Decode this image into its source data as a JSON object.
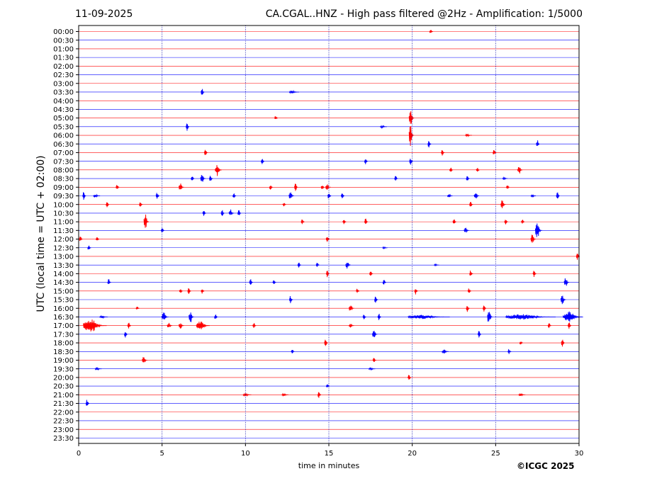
{
  "header": {
    "date": "11-09-2025",
    "title": "CA.CGAL..HNZ - High pass filtered @2Hz - Amplification: 1/5000"
  },
  "footer": {
    "copyright": "©ICGC 2025"
  },
  "chart_data": {
    "type": "line",
    "title": "CA.CGAL..HNZ - High pass filtered @2Hz - Amplification: 1/5000",
    "xlabel": "time in minutes",
    "ylabel": "UTC (local time = UTC + 02:00)",
    "xlim": [
      0,
      30
    ],
    "x_ticks": [
      "0",
      "5",
      "10",
      "15",
      "20",
      "25",
      "30"
    ],
    "grid": "vertical dotted lines at 5, 10, 15, 20, 25",
    "series_colors": [
      "#ff0000",
      "#0000ff"
    ],
    "rows": [
      {
        "label": "00:00",
        "events": [
          [
            21.1,
            3,
            0.2
          ]
        ]
      },
      {
        "label": "00:30",
        "events": []
      },
      {
        "label": "01:00",
        "events": []
      },
      {
        "label": "01:30",
        "events": []
      },
      {
        "label": "02:00",
        "events": []
      },
      {
        "label": "02:30",
        "events": []
      },
      {
        "label": "03:00",
        "events": []
      },
      {
        "label": "03:30",
        "events": [
          [
            7.4,
            6,
            0.2
          ],
          [
            12.8,
            2,
            0.6
          ]
        ]
      },
      {
        "label": "04:00",
        "events": []
      },
      {
        "label": "04:30",
        "events": []
      },
      {
        "label": "05:00",
        "events": [
          [
            11.8,
            3,
            0.2
          ],
          [
            19.9,
            14,
            0.3
          ]
        ]
      },
      {
        "label": "05:30",
        "events": [
          [
            6.5,
            6,
            0.2
          ],
          [
            18.2,
            2,
            0.4
          ]
        ]
      },
      {
        "label": "06:00",
        "events": [
          [
            19.9,
            16,
            0.3
          ],
          [
            23.3,
            2,
            0.4
          ]
        ]
      },
      {
        "label": "06:30",
        "events": [
          [
            21.0,
            6,
            0.2
          ],
          [
            27.5,
            6,
            0.2
          ]
        ]
      },
      {
        "label": "07:00",
        "events": [
          [
            7.6,
            5,
            0.2
          ],
          [
            21.8,
            5,
            0.2
          ],
          [
            24.9,
            4,
            0.2
          ]
        ]
      },
      {
        "label": "07:30",
        "events": [
          [
            11.0,
            5,
            0.2
          ],
          [
            17.2,
            5,
            0.2
          ],
          [
            19.9,
            5,
            0.2
          ]
        ]
      },
      {
        "label": "08:00",
        "events": [
          [
            8.3,
            9,
            0.4
          ],
          [
            22.3,
            4,
            0.2
          ],
          [
            23.9,
            4,
            0.2
          ],
          [
            26.4,
            7,
            0.3
          ]
        ]
      },
      {
        "label": "08:30",
        "events": [
          [
            6.8,
            4,
            0.2
          ],
          [
            7.4,
            6,
            0.3
          ],
          [
            7.9,
            5,
            0.2
          ],
          [
            19.0,
            4,
            0.2
          ],
          [
            23.3,
            4,
            0.2
          ],
          [
            25.5,
            2,
            0.3
          ]
        ]
      },
      {
        "label": "09:00",
        "events": [
          [
            2.3,
            4,
            0.2
          ],
          [
            6.1,
            7,
            0.3
          ],
          [
            11.5,
            4,
            0.2
          ],
          [
            13.0,
            6,
            0.2
          ],
          [
            14.6,
            4,
            0.2
          ],
          [
            14.9,
            6,
            0.3
          ],
          [
            25.7,
            3,
            0.2
          ]
        ]
      },
      {
        "label": "09:30",
        "events": [
          [
            0.3,
            7,
            0.2
          ],
          [
            1.0,
            3,
            0.4
          ],
          [
            4.7,
            6,
            0.2
          ],
          [
            9.3,
            4,
            0.2
          ],
          [
            12.7,
            6,
            0.3
          ],
          [
            15.0,
            6,
            0.2
          ],
          [
            15.8,
            5,
            0.2
          ],
          [
            22.2,
            3,
            0.3
          ],
          [
            23.8,
            6,
            0.3
          ],
          [
            27.2,
            3,
            0.3
          ],
          [
            28.7,
            7,
            0.2
          ]
        ]
      },
      {
        "label": "10:00",
        "events": [
          [
            1.7,
            4,
            0.2
          ],
          [
            3.7,
            4,
            0.2
          ],
          [
            12.3,
            3,
            0.2
          ],
          [
            23.5,
            5,
            0.2
          ],
          [
            25.4,
            7,
            0.3
          ]
        ]
      },
      {
        "label": "10:30",
        "events": [
          [
            7.5,
            5,
            0.2
          ],
          [
            8.6,
            5,
            0.2
          ],
          [
            9.1,
            6,
            0.3
          ],
          [
            9.6,
            5,
            0.2
          ]
        ]
      },
      {
        "label": "11:00",
        "events": [
          [
            4.0,
            12,
            0.3
          ],
          [
            13.4,
            4,
            0.2
          ],
          [
            15.9,
            4,
            0.2
          ],
          [
            17.2,
            5,
            0.2
          ],
          [
            22.5,
            5,
            0.2
          ],
          [
            25.6,
            4,
            0.2
          ],
          [
            26.6,
            4,
            0.2
          ]
        ]
      },
      {
        "label": "11:30",
        "events": [
          [
            5.0,
            4,
            0.2
          ],
          [
            23.2,
            4,
            0.3
          ],
          [
            27.5,
            13,
            0.4
          ]
        ]
      },
      {
        "label": "12:00",
        "events": [
          [
            0.1,
            4,
            0.2
          ],
          [
            1.1,
            4,
            0.2
          ],
          [
            14.9,
            6,
            0.2
          ],
          [
            27.2,
            9,
            0.3
          ]
        ]
      },
      {
        "label": "12:30",
        "events": [
          [
            0.6,
            4,
            0.2
          ],
          [
            18.3,
            2,
            0.3
          ]
        ]
      },
      {
        "label": "13:00",
        "events": [
          [
            29.9,
            5,
            0.2
          ]
        ]
      },
      {
        "label": "13:30",
        "events": [
          [
            13.2,
            4,
            0.2
          ],
          [
            14.3,
            4,
            0.2
          ],
          [
            16.1,
            7,
            0.3
          ],
          [
            21.4,
            2,
            0.3
          ]
        ]
      },
      {
        "label": "14:00",
        "events": [
          [
            14.9,
            5,
            0.2
          ],
          [
            17.5,
            4,
            0.2
          ],
          [
            23.5,
            5,
            0.2
          ],
          [
            27.3,
            5,
            0.2
          ]
        ]
      },
      {
        "label": "14:30",
        "events": [
          [
            1.8,
            5,
            0.2
          ],
          [
            10.3,
            5,
            0.2
          ],
          [
            11.7,
            4,
            0.2
          ],
          [
            18.3,
            4,
            0.2
          ],
          [
            29.2,
            7,
            0.3
          ]
        ]
      },
      {
        "label": "15:00",
        "events": [
          [
            6.1,
            4,
            0.2
          ],
          [
            6.6,
            5,
            0.2
          ],
          [
            7.4,
            4,
            0.2
          ],
          [
            16.7,
            4,
            0.2
          ],
          [
            20.2,
            5,
            0.2
          ],
          [
            23.4,
            4,
            0.2
          ]
        ]
      },
      {
        "label": "15:30",
        "events": [
          [
            12.7,
            6,
            0.2
          ],
          [
            17.8,
            5,
            0.2
          ],
          [
            29.0,
            7,
            0.3
          ]
        ]
      },
      {
        "label": "16:00",
        "events": [
          [
            3.5,
            3,
            0.2
          ],
          [
            16.3,
            6,
            0.3
          ],
          [
            23.3,
            5,
            0.2
          ],
          [
            24.3,
            5,
            0.2
          ]
        ]
      },
      {
        "label": "16:30",
        "events": [
          [
            1.4,
            2,
            0.5
          ],
          [
            5.1,
            7,
            0.4
          ],
          [
            6.7,
            10,
            0.3
          ],
          [
            8.2,
            4,
            0.2
          ],
          [
            17.1,
            4,
            0.2
          ],
          [
            18.0,
            5,
            0.2
          ],
          [
            20.5,
            3,
            2.5
          ],
          [
            24.6,
            12,
            0.3
          ],
          [
            26.5,
            4,
            3.0
          ],
          [
            29.4,
            8,
            1.2
          ]
        ]
      },
      {
        "label": "17:00",
        "events": [
          [
            0.7,
            10,
            1.4
          ],
          [
            3.0,
            5,
            0.2
          ],
          [
            5.4,
            4,
            0.3
          ],
          [
            6.1,
            6,
            0.3
          ],
          [
            7.3,
            7,
            0.8
          ],
          [
            10.5,
            4,
            0.2
          ],
          [
            16.3,
            3,
            0.3
          ],
          [
            28.2,
            4,
            0.2
          ],
          [
            29.4,
            5,
            0.2
          ]
        ]
      },
      {
        "label": "17:30",
        "events": [
          [
            2.8,
            5,
            0.2
          ],
          [
            17.7,
            6,
            0.3
          ],
          [
            24.0,
            5,
            0.2
          ]
        ]
      },
      {
        "label": "18:00",
        "events": [
          [
            14.8,
            6,
            0.2
          ],
          [
            26.5,
            3,
            0.2
          ],
          [
            29.0,
            7,
            0.2
          ]
        ]
      },
      {
        "label": "18:30",
        "events": [
          [
            12.8,
            3,
            0.2
          ],
          [
            21.9,
            3,
            0.4
          ],
          [
            25.8,
            4,
            0.2
          ]
        ]
      },
      {
        "label": "19:00",
        "events": [
          [
            3.9,
            6,
            0.3
          ],
          [
            17.7,
            4,
            0.2
          ]
        ]
      },
      {
        "label": "19:30",
        "events": [
          [
            1.1,
            2,
            0.4
          ],
          [
            17.5,
            2,
            0.4
          ]
        ]
      },
      {
        "label": "20:00",
        "events": [
          [
            19.8,
            5,
            0.2
          ]
        ]
      },
      {
        "label": "20:30",
        "events": [
          [
            14.9,
            3,
            0.2
          ]
        ]
      },
      {
        "label": "21:00",
        "events": [
          [
            14.4,
            5,
            0.2
          ],
          [
            10.0,
            2,
            0.5
          ],
          [
            12.3,
            2,
            0.4
          ],
          [
            26.5,
            2,
            0.4
          ]
        ]
      },
      {
        "label": "21:30",
        "events": [
          [
            0.5,
            6,
            0.2
          ]
        ]
      },
      {
        "label": "22:00",
        "events": []
      },
      {
        "label": "22:30",
        "events": []
      },
      {
        "label": "23:00",
        "events": []
      },
      {
        "label": "23:30",
        "events": []
      }
    ]
  }
}
